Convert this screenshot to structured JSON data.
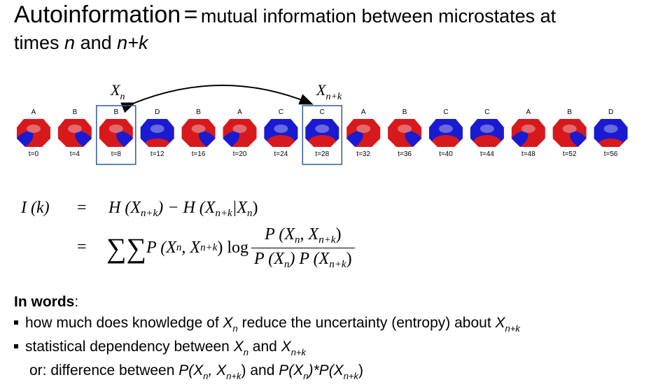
{
  "title": {
    "main": "Autoinformation",
    "equals": "=",
    "rest1": "mutual information between microstates at",
    "rest2a": "times",
    "rest2_n": "n",
    "rest2_and": "and",
    "rest2_nk": "n+k"
  },
  "diagram": {
    "label_xn": "X",
    "label_xn_sub": "n",
    "label_xnk": "X",
    "label_xnk_sub": "n+k",
    "maps": [
      {
        "state": "A",
        "time": "t=0"
      },
      {
        "state": "B",
        "time": "t=4"
      },
      {
        "state": "B",
        "time": "t=8"
      },
      {
        "state": "D",
        "time": "t=12"
      },
      {
        "state": "B",
        "time": "t=16"
      },
      {
        "state": "A",
        "time": "t=20"
      },
      {
        "state": "C",
        "time": "t=24"
      },
      {
        "state": "C",
        "time": "t=28"
      },
      {
        "state": "A",
        "time": "t=32"
      },
      {
        "state": "B",
        "time": "t=36"
      },
      {
        "state": "C",
        "time": "t=40"
      },
      {
        "state": "C",
        "time": "t=44"
      },
      {
        "state": "A",
        "time": "t=48"
      },
      {
        "state": "B",
        "time": "t=52"
      },
      {
        "state": "D",
        "time": "t=56"
      }
    ],
    "highlighted": [
      2,
      7
    ],
    "colors": {
      "red": "#d7191c",
      "blue": "#1a1ad0",
      "box": "#2f5d9a"
    }
  },
  "equation": {
    "lhs": "I (k)",
    "eq": "=",
    "line1": "H (X",
    "line1_sub1": "n+k",
    "line1_mid": ") − H (X",
    "line1_sub2": "n+k",
    "line1_bar": "|X",
    "line1_sub3": "n",
    "line1_end": ")",
    "sums": "∑∑",
    "p_joint": "P (X",
    "p_joint_sub1": "n",
    "p_joint_mid": ", X",
    "p_joint_sub2": "n+k",
    "p_joint_end": ")",
    "log": "log",
    "num": "P (X",
    "num_sub1": "n",
    "num_mid": ", X",
    "num_sub2": "n+k",
    "num_end": ")",
    "den1": "P (X",
    "den_sub1": "n",
    "den_mid": ") P (X",
    "den_sub2": "n+k",
    "den_end": ")"
  },
  "words": {
    "heading": "In words",
    "colon": ":",
    "b1_a": "how much does knowledge of",
    "b1_x": "X",
    "b1_xsub": "n",
    "b1_b": "reduce the uncertainty (entropy) about",
    "b1_x2": "X",
    "b1_x2sub": "n+k",
    "b2_a": "statistical dependency between",
    "b2_x": "X",
    "b2_xsub": "n",
    "b2_and": "and",
    "b2_x2": "X",
    "b2_x2sub": "n+k",
    "b3_a": "or: difference between",
    "b3_p1": "P(X",
    "b3_p1sub": "n",
    "b3_comma": ", X",
    "b3_p1sub2": "n+k",
    "b3_close": ")",
    "b3_and": "and",
    "b3_p2": "P(X",
    "b3_p2sub": "n",
    "b3_mult": ")*P(X",
    "b3_p3sub": "n+k",
    "b3_end": ")"
  }
}
